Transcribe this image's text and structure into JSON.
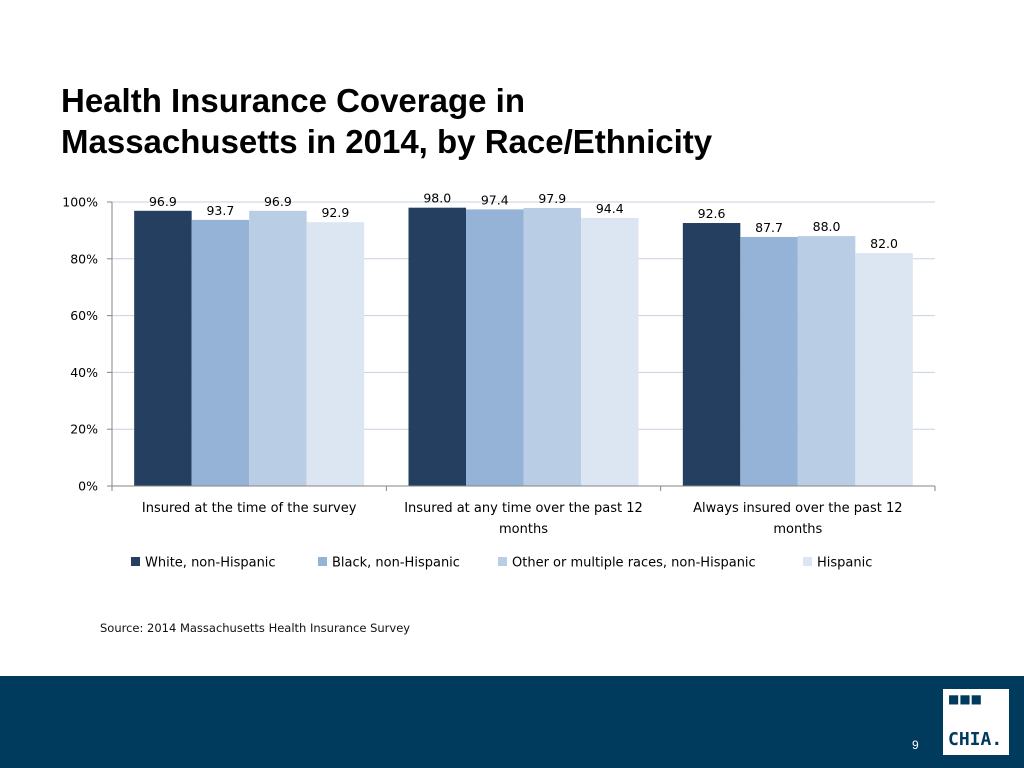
{
  "slide": {
    "title_line1": "Health Insurance Coverage in",
    "title_line2": "Massachusetts in 2014, by Race/Ethnicity",
    "source": "Source:  2014 Massachusetts Health Insurance Survey",
    "page_number": "9",
    "logo_text": "CHIA.",
    "logo_icon": "three-dots-icon",
    "footer_color": "#003a5d"
  },
  "chart_data": {
    "type": "bar",
    "title": "",
    "xlabel": "",
    "ylabel": "",
    "ylim": [
      0,
      100
    ],
    "yticks": [
      0,
      20,
      40,
      60,
      80,
      100
    ],
    "ytick_suffix": "%",
    "grid": true,
    "legend_position": "bottom",
    "categories": [
      [
        "Insured at the time of the survey"
      ],
      [
        "Insured at any time over the past 12",
        "months"
      ],
      [
        "Always insured over the past 12",
        "months"
      ]
    ],
    "series": [
      {
        "name": "White, non-Hispanic",
        "color": "#243f60",
        "values": [
          96.9,
          98.0,
          92.6
        ]
      },
      {
        "name": "Black, non-Hispanic",
        "color": "#95b3d7",
        "values": [
          93.7,
          97.4,
          87.7
        ]
      },
      {
        "name": "Other or multiple races, non-Hispanic",
        "color": "#b9cde5",
        "values": [
          96.9,
          97.9,
          88.0
        ]
      },
      {
        "name": "Hispanic",
        "color": "#dce6f2",
        "values": [
          92.9,
          94.4,
          82.0
        ]
      }
    ]
  }
}
